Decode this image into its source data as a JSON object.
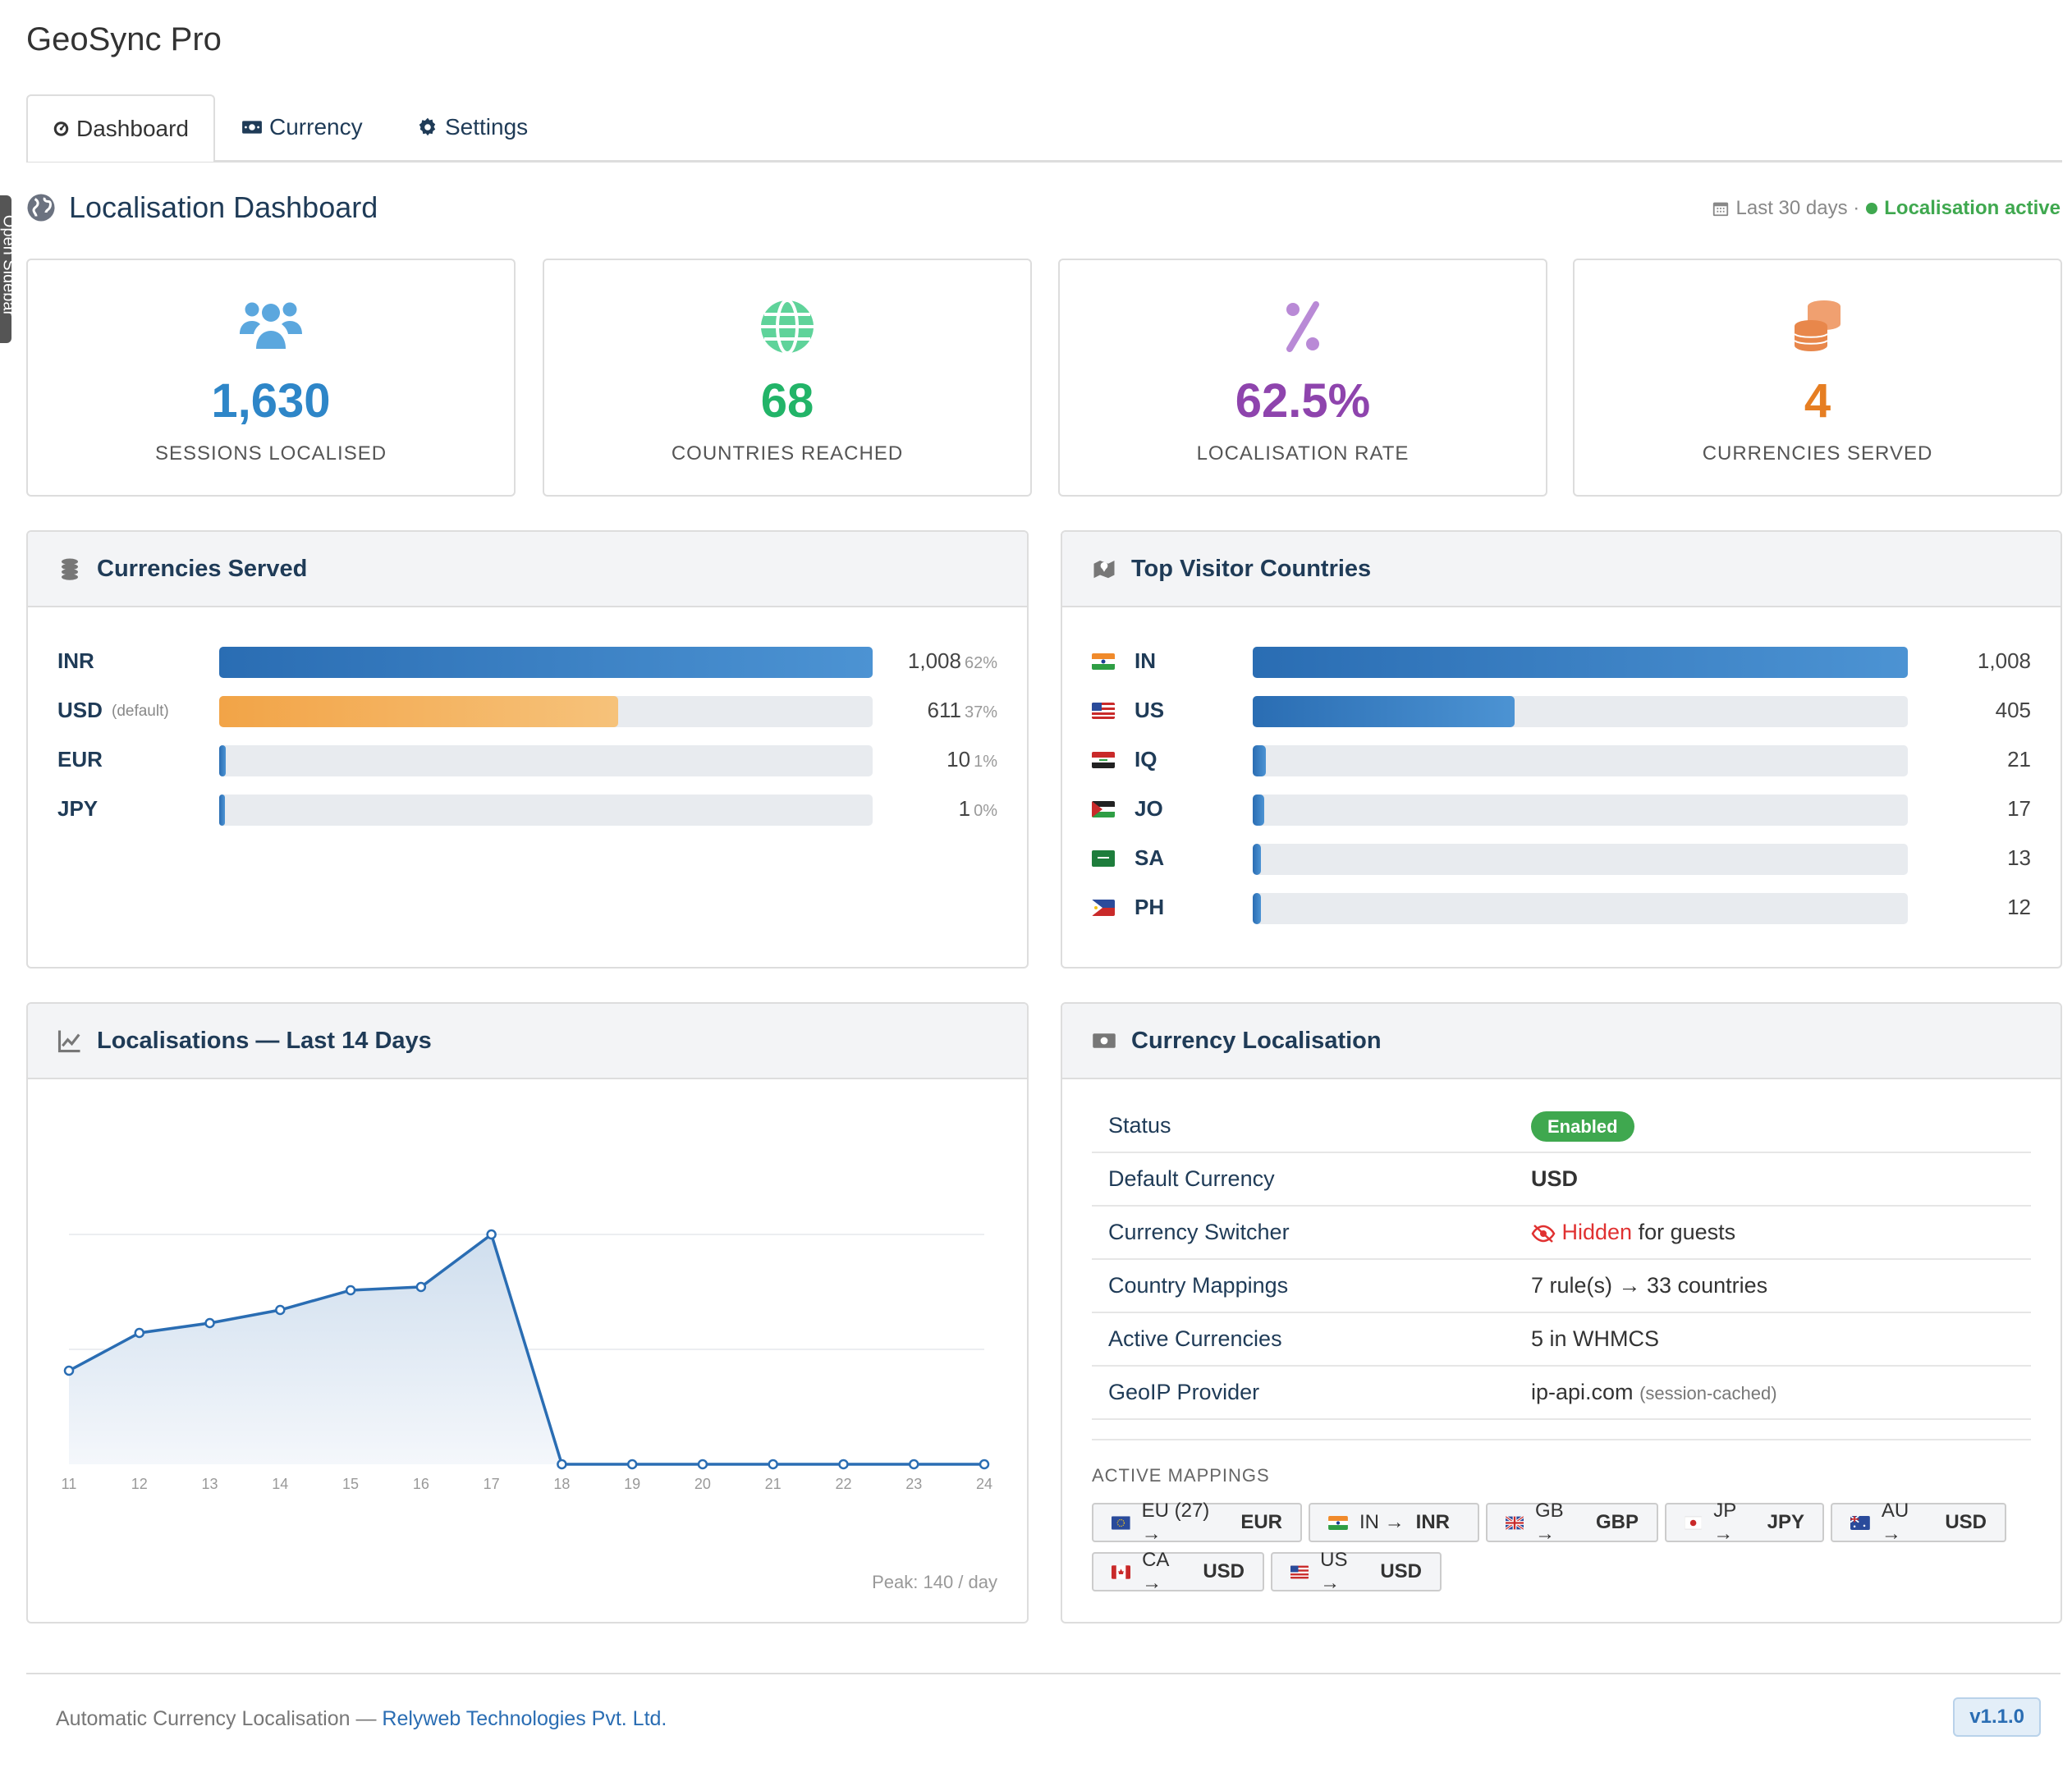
{
  "app": {
    "title": "GeoSync Pro",
    "sidebar_tab": "Open Sidebar"
  },
  "tabs": [
    {
      "label": "Dashboard",
      "icon": "dashboard-icon",
      "active": true
    },
    {
      "label": "Currency",
      "icon": "money-bill-icon",
      "active": false
    },
    {
      "label": "Settings",
      "icon": "gear-icon",
      "active": false
    }
  ],
  "header": {
    "title": "Localisation Dashboard",
    "period": "Last 30 days ·",
    "status": "Localisation active",
    "status_color": "#3fa84f"
  },
  "stats": [
    {
      "value": "1,630",
      "label": "SESSIONS LOCALISED",
      "color": "#2e86c8",
      "icon": "users-icon"
    },
    {
      "value": "68",
      "label": "COUNTRIES REACHED",
      "color": "#22b468",
      "icon": "globe-icon"
    },
    {
      "value": "62.5%",
      "label": "LOCALISATION RATE",
      "color": "#8e44ad",
      "icon": "percent-icon"
    },
    {
      "value": "4",
      "label": "CURRENCIES SERVED",
      "color": "#e67e22",
      "icon": "coins-icon"
    }
  ],
  "currencies_panel": {
    "title": "Currencies Served",
    "rows": [
      {
        "code": "INR",
        "note": "",
        "count": "1,008",
        "pct": "62%",
        "share": 1.0,
        "color": "blue"
      },
      {
        "code": "USD",
        "note": "(default)",
        "count": "611",
        "pct": "37%",
        "share": 0.61,
        "color": "orange"
      },
      {
        "code": "EUR",
        "note": "",
        "count": "10",
        "pct": "1%",
        "share": 0.01,
        "color": "blue"
      },
      {
        "code": "JPY",
        "note": "",
        "count": "1",
        "pct": "0%",
        "share": 0.005,
        "color": "blue"
      }
    ]
  },
  "countries_panel": {
    "title": "Top Visitor Countries",
    "rows": [
      {
        "code": "IN",
        "count": "1,008",
        "share": 1.0,
        "flag": "flag-india"
      },
      {
        "code": "US",
        "count": "405",
        "share": 0.4,
        "flag": "flag-usa"
      },
      {
        "code": "IQ",
        "count": "21",
        "share": 0.02,
        "flag": "flag-iraq"
      },
      {
        "code": "JO",
        "count": "17",
        "share": 0.017,
        "flag": "flag-jordan"
      },
      {
        "code": "SA",
        "count": "13",
        "share": 0.013,
        "flag": "flag-saudi"
      },
      {
        "code": "PH",
        "count": "12",
        "share": 0.012,
        "flag": "flag-philippines"
      }
    ]
  },
  "chart_panel": {
    "title": "Localisations — Last 14 Days",
    "peak": "Peak: 140 / day"
  },
  "chart_data": {
    "type": "area",
    "title": "Localisations — Last 14 Days",
    "x": [
      "11",
      "12",
      "13",
      "14",
      "15",
      "16",
      "17",
      "18",
      "19",
      "20",
      "21",
      "22",
      "23",
      "24"
    ],
    "values": [
      57,
      80,
      86,
      94,
      106,
      108,
      140,
      0,
      0,
      0,
      0,
      0,
      0,
      0
    ],
    "ylim": [
      0,
      140
    ],
    "grid": true,
    "color": "#2a6db3"
  },
  "localisation_panel": {
    "title": "Currency Localisation",
    "rows": [
      {
        "key": "Status",
        "value": "Enabled"
      },
      {
        "key": "Default Currency",
        "value": "USD"
      },
      {
        "key": "Currency Switcher",
        "value_hl": "Hidden",
        "value_rest": "for guests"
      },
      {
        "key": "Country Mappings",
        "value": "7 rule(s) → 33 countries"
      },
      {
        "key": "Active Currencies",
        "value": "5 in WHMCS"
      },
      {
        "key": "GeoIP Provider",
        "value": "ip-api.com",
        "note": "(session-cached)"
      }
    ],
    "mappings_title": "ACTIVE MAPPINGS",
    "mappings": [
      {
        "from": "EU (27) →",
        "to": "EUR",
        "flag": "flag-eu"
      },
      {
        "from": "IN →",
        "to": "INR",
        "flag": "flag-india"
      },
      {
        "from": "GB →",
        "to": "GBP",
        "flag": "flag-uk"
      },
      {
        "from": "JP →",
        "to": "JPY",
        "flag": "flag-japan"
      },
      {
        "from": "AU →",
        "to": "USD",
        "flag": "flag-australia"
      },
      {
        "from": "CA →",
        "to": "USD",
        "flag": "flag-canada"
      },
      {
        "from": "US →",
        "to": "USD",
        "flag": "flag-usa"
      }
    ]
  },
  "footer": {
    "text": "Automatic Currency Localisation —",
    "link": "Relyweb Technologies Pvt. Ltd.",
    "version": "v1.1.0"
  }
}
